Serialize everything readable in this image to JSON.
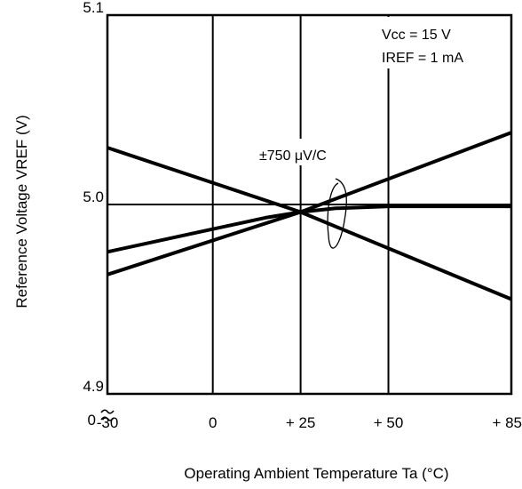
{
  "chart_data": {
    "type": "line",
    "title": "",
    "xlabel": "Operating Ambient Temperature Ta (°C)",
    "ylabel": "Reference Voltage VREF (V)",
    "xlim": [
      -30,
      85
    ],
    "ylim": [
      4.9,
      5.1
    ],
    "x_tick_labels": [
      "-30",
      "0",
      "+ 25",
      "+ 50",
      "+ 85"
    ],
    "x_tick_values": [
      -30,
      0,
      25,
      50,
      85
    ],
    "y_tick_labels": [
      "4.9",
      "5.0",
      "5.1"
    ],
    "y_tick_values": [
      4.9,
      5.0,
      5.1
    ],
    "y_break_label": "0",
    "grid": true,
    "conditions": [
      "Vcc = 15 V",
      "IREF = 1 mA"
    ],
    "annotation": "±750 μV/C",
    "series": [
      {
        "x": [
          -30,
          25,
          85
        ],
        "y": [
          5.03,
          4.996,
          4.95
        ]
      },
      {
        "x": [
          -30,
          25,
          85
        ],
        "y": [
          4.963,
          4.996,
          5.038
        ]
      },
      {
        "x": [
          -30,
          -10,
          5,
          15,
          25,
          35,
          50,
          85
        ],
        "y": [
          4.975,
          4.983,
          4.989,
          4.993,
          4.996,
          4.998,
          4.999,
          4.999
        ]
      }
    ]
  }
}
